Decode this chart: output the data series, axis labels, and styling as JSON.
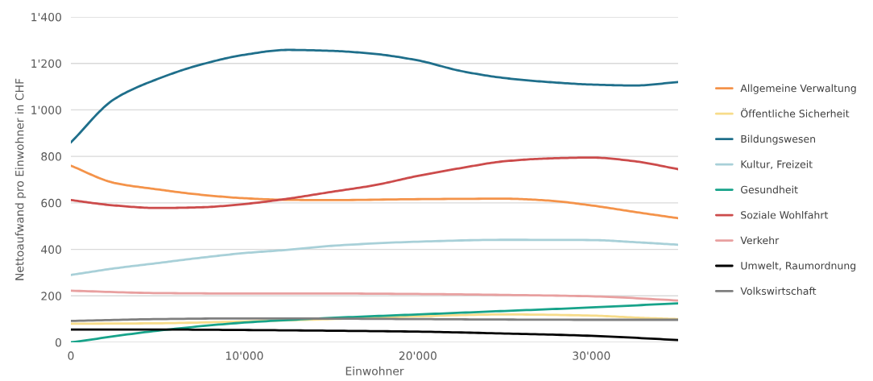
{
  "chart_data": {
    "type": "line",
    "xlabel": "Einwohner",
    "ylabel": "Nettoaufwand pro Einwohner in CHF",
    "xlim": [
      0,
      35000
    ],
    "xticks": [
      0,
      {
        "value": 10000,
        "label": "10'000"
      },
      {
        "value": 20000,
        "label": "20'000"
      },
      {
        "value": 30000,
        "label": "30'000"
      }
    ],
    "ylim": [
      0,
      1400
    ],
    "yticks": [
      0,
      200,
      400,
      600,
      800,
      {
        "value": 1000,
        "label": "1'000"
      },
      {
        "value": 1200,
        "label": "1'200"
      },
      {
        "value": 1400,
        "label": "1'400"
      }
    ],
    "grid": "y",
    "legend": "right",
    "marker": "none",
    "line_style": "solid",
    "series": [
      {
        "name": "Allgemeine Verwaltung",
        "color": "#f4934a",
        "x": [
          0,
          2500,
          5000,
          7500,
          10000,
          12500,
          15000,
          20000,
          25000,
          27500,
          30000,
          32500,
          35000
        ],
        "values": [
          760,
          686,
          658,
          635,
          620,
          613,
          612,
          616,
          618,
          610,
          589,
          561,
          534
        ]
      },
      {
        "name": "Öffentliche Sicherheit",
        "color": "#f7dc8a",
        "x": [
          0,
          5000,
          10000,
          15000,
          20000,
          25000,
          30000,
          33000,
          35000
        ],
        "values": [
          80,
          82,
          90,
          100,
          112,
          120,
          115,
          105,
          100
        ]
      },
      {
        "name": "Bildungswesen",
        "color": "#1f6f8b",
        "x": [
          0,
          2500,
          5000,
          7500,
          10000,
          12500,
          15000,
          17500,
          20000,
          22500,
          25000,
          27500,
          30000,
          32500,
          35000
        ],
        "values": [
          860,
          1046,
          1133,
          1195,
          1237,
          1258,
          1254,
          1241,
          1213,
          1167,
          1137,
          1120,
          1109,
          1105,
          1120
        ]
      },
      {
        "name": "Kultur, Freizeit",
        "color": "#a8d0d8",
        "x": [
          0,
          2500,
          5000,
          7500,
          10000,
          12500,
          15000,
          20000,
          25000,
          30000,
          32500,
          35000
        ],
        "values": [
          290,
          318,
          341,
          364,
          384,
          398,
          415,
          433,
          441,
          440,
          431,
          420
        ]
      },
      {
        "name": "Gesundheit",
        "color": "#17a38a",
        "x": [
          0,
          5000,
          10000,
          15000,
          20000,
          25000,
          30000,
          35000
        ],
        "values": [
          0,
          50,
          85,
          105,
          120,
          135,
          150,
          168
        ]
      },
      {
        "name": "Soziale Wohlfahrt",
        "color": "#cc4b4b",
        "x": [
          0,
          2500,
          5000,
          7500,
          10000,
          12500,
          15000,
          17500,
          20000,
          22500,
          25000,
          27500,
          30000,
          32500,
          35000
        ],
        "values": [
          612,
          589,
          578,
          581,
          595,
          618,
          647,
          676,
          716,
          750,
          779,
          791,
          795,
          779,
          745
        ]
      },
      {
        "name": "Verkehr",
        "color": "#e8a0a0",
        "x": [
          0,
          5000,
          10000,
          15000,
          20000,
          25000,
          30000,
          35000
        ],
        "values": [
          222,
          212,
          210,
          210,
          208,
          204,
          198,
          180
        ]
      },
      {
        "name": "Umwelt, Raumordnung",
        "color": "#000000",
        "x": [
          0,
          5000,
          10000,
          15000,
          20000,
          25000,
          30000,
          35000
        ],
        "values": [
          55,
          55,
          53,
          50,
          46,
          38,
          28,
          10
        ]
      },
      {
        "name": "Volkswirtschaft",
        "color": "#7f7f7f",
        "x": [
          0,
          5000,
          10000,
          15000,
          20000,
          25000,
          30000,
          35000
        ],
        "values": [
          92,
          100,
          103,
          102,
          100,
          98,
          97,
          97
        ]
      }
    ]
  }
}
